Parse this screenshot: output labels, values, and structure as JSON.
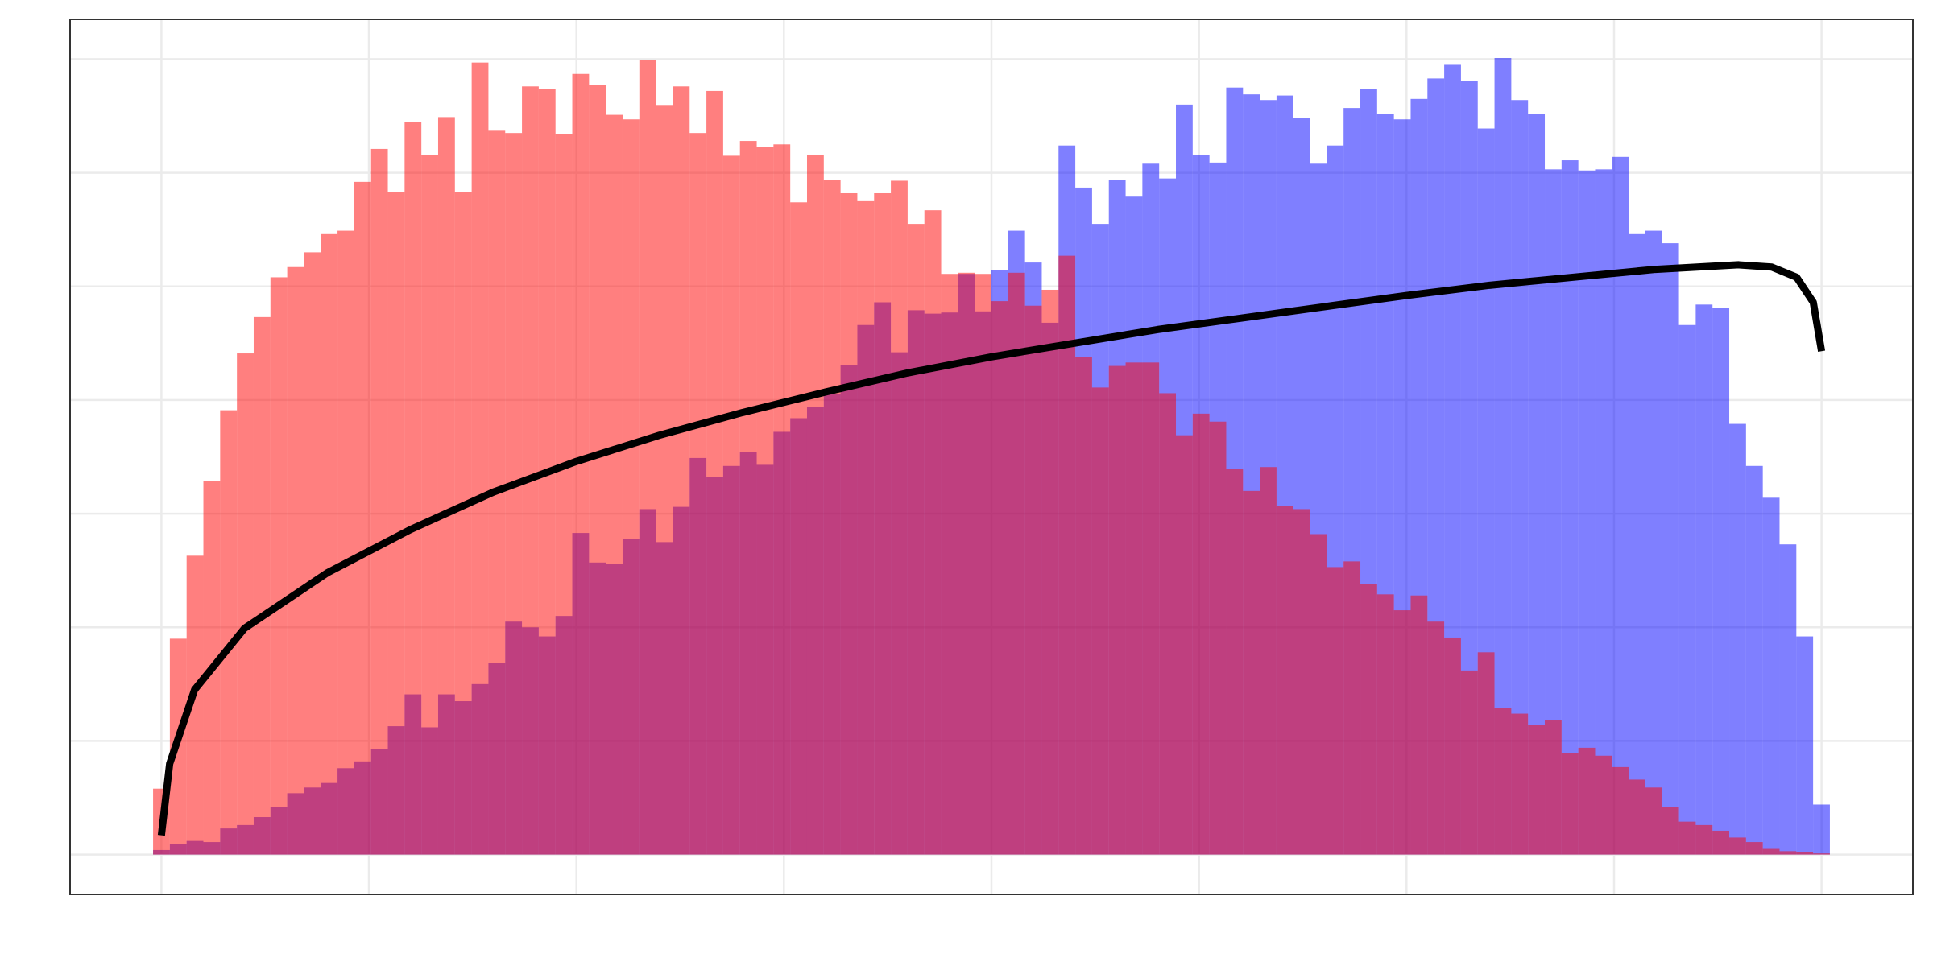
{
  "chart_data": {
    "type": "histogram",
    "xlim": [
      -0.055,
      1.055
    ],
    "ylim": [
      -0.35,
      7.35
    ],
    "xticks": [
      0,
      0.125,
      0.25,
      0.375,
      0.5,
      0.625,
      0.75,
      0.875,
      1
    ],
    "yticks": [
      0,
      1,
      2,
      3,
      4,
      5,
      6,
      7
    ],
    "grid": true,
    "bins": [
      -0.005,
      0.0051,
      0.0152,
      0.0253,
      0.0354,
      0.0455,
      0.0556,
      0.0657,
      0.0758,
      0.0859,
      0.096,
      0.1061,
      0.1162,
      0.1263,
      0.1364,
      0.1465,
      0.1566,
      0.1667,
      0.1768,
      0.1869,
      0.197,
      0.2071,
      0.2172,
      0.2273,
      0.2374,
      0.2475,
      0.2576,
      0.2677,
      0.2778,
      0.2879,
      0.298,
      0.3081,
      0.3182,
      0.3283,
      0.3384,
      0.3485,
      0.3586,
      0.3687,
      0.3788,
      0.3889,
      0.399,
      0.4091,
      0.4192,
      0.4293,
      0.4394,
      0.4495,
      0.4596,
      0.4697,
      0.4798,
      0.4899,
      0.5,
      0.5101,
      0.5202,
      0.5303,
      0.5404,
      0.5505,
      0.5606,
      0.5707,
      0.5808,
      0.5909,
      0.601,
      0.6111,
      0.6212,
      0.6313,
      0.6414,
      0.6515,
      0.6616,
      0.6717,
      0.6818,
      0.6919,
      0.702,
      0.7121,
      0.7222,
      0.7323,
      0.7424,
      0.7525,
      0.7626,
      0.7727,
      0.7828,
      0.7929,
      0.803,
      0.8131,
      0.8232,
      0.8333,
      0.8434,
      0.8535,
      0.8636,
      0.8737,
      0.8838,
      0.8939,
      0.904,
      0.9141,
      0.9242,
      0.9343,
      0.9444,
      0.9545,
      0.9646,
      0.9747,
      0.9848,
      0.9949,
      1.005
    ],
    "series": [
      {
        "color": "#0000ff",
        "opacity": 0.5,
        "values": [
          0.04,
          0.09,
          0.12,
          0.11,
          0.23,
          0.26,
          0.33,
          0.42,
          0.54,
          0.59,
          0.63,
          0.76,
          0.82,
          0.93,
          1.13,
          1.41,
          1.12,
          1.41,
          1.35,
          1.5,
          1.69,
          2.05,
          2.0,
          1.92,
          2.1,
          2.83,
          2.57,
          2.56,
          2.78,
          3.04,
          2.75,
          3.06,
          3.49,
          3.32,
          3.42,
          3.54,
          3.43,
          3.72,
          3.84,
          3.94,
          4.05,
          4.31,
          4.66,
          4.86,
          4.42,
          4.79,
          4.76,
          4.77,
          5.11,
          4.78,
          5.14,
          5.49,
          5.21,
          4.68,
          6.24,
          5.87,
          5.55,
          5.94,
          5.79,
          6.08,
          5.95,
          6.6,
          6.16,
          6.09,
          6.75,
          6.69,
          6.64,
          6.68,
          6.48,
          6.08,
          6.24,
          6.57,
          6.74,
          6.52,
          6.47,
          6.65,
          6.83,
          6.95,
          6.81,
          6.39,
          7.01,
          6.64,
          6.52,
          6.03,
          6.11,
          6.02,
          6.03,
          6.14,
          5.46,
          5.49,
          5.38,
          4.66,
          4.84,
          4.81,
          3.79,
          3.42,
          3.14,
          2.73,
          1.92,
          0.44
        ]
      },
      {
        "color": "#ff0000",
        "opacity": 0.5,
        "values": [
          0.58,
          1.9,
          2.63,
          3.29,
          3.91,
          4.41,
          4.73,
          5.08,
          5.17,
          5.3,
          5.46,
          5.49,
          5.92,
          6.21,
          5.83,
          6.45,
          6.16,
          6.49,
          5.83,
          6.97,
          6.37,
          6.35,
          6.76,
          6.74,
          6.34,
          6.87,
          6.77,
          6.51,
          6.47,
          6.99,
          6.59,
          6.76,
          6.35,
          6.72,
          6.15,
          6.28,
          6.23,
          6.25,
          5.74,
          6.16,
          5.94,
          5.82,
          5.75,
          5.82,
          5.93,
          5.55,
          5.67,
          5.11,
          5.12,
          5.11,
          4.87,
          5.12,
          4.83,
          4.97,
          5.27,
          4.38,
          4.11,
          4.3,
          4.33,
          4.33,
          4.06,
          3.69,
          3.88,
          3.81,
          3.39,
          3.2,
          3.41,
          3.07,
          3.04,
          2.82,
          2.53,
          2.58,
          2.38,
          2.29,
          2.15,
          2.28,
          2.05,
          1.91,
          1.62,
          1.78,
          1.29,
          1.24,
          1.14,
          1.18,
          0.89,
          0.94,
          0.87,
          0.77,
          0.66,
          0.59,
          0.42,
          0.29,
          0.26,
          0.21,
          0.15,
          0.11,
          0.05,
          0.03,
          0.02,
          0.01
        ]
      }
    ],
    "overlay": {
      "type": "line",
      "color": "#000000",
      "x": [
        0,
        0.005,
        0.02,
        0.05,
        0.1,
        0.15,
        0.2,
        0.25,
        0.3,
        0.35,
        0.4,
        0.45,
        0.5,
        0.55,
        0.6,
        0.65,
        0.7,
        0.75,
        0.8,
        0.85,
        0.9,
        0.95,
        0.97,
        0.985,
        0.995,
        1.0
      ],
      "values": [
        0.17,
        0.8,
        1.45,
        1.99,
        2.48,
        2.86,
        3.19,
        3.46,
        3.69,
        3.89,
        4.07,
        4.24,
        4.38,
        4.5,
        4.62,
        4.72,
        4.82,
        4.92,
        5.01,
        5.08,
        5.15,
        5.19,
        5.17,
        5.08,
        4.86,
        4.43
      ]
    }
  }
}
